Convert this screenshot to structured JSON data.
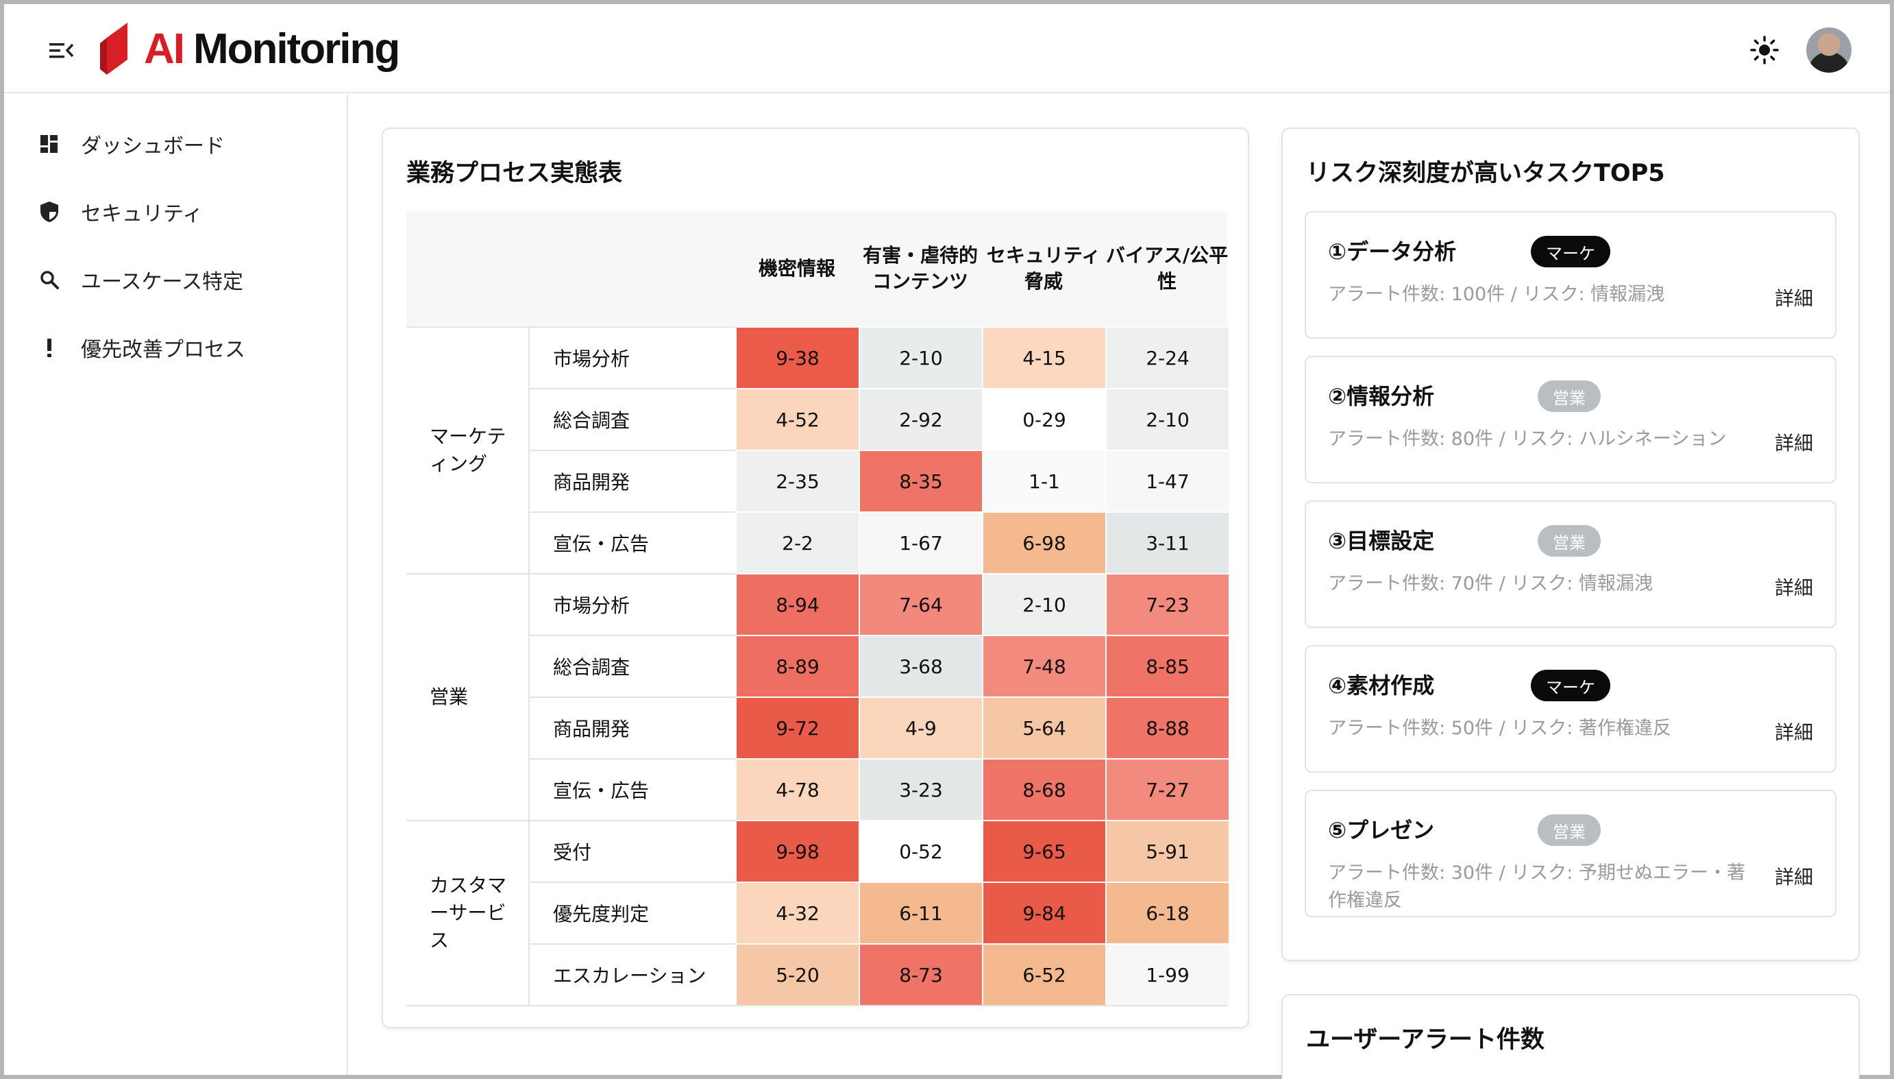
{
  "header": {
    "logo_ai": "AI",
    "logo_rest": "Monitoring"
  },
  "sidebar": {
    "items": [
      {
        "label": "ダッシュボード",
        "icon": "dashboard-icon"
      },
      {
        "label": "セキュリティ",
        "icon": "shield-icon"
      },
      {
        "label": "ユースケース特定",
        "icon": "search-icon"
      },
      {
        "label": "優先改善プロセス",
        "icon": "exclamation-icon"
      }
    ]
  },
  "matrix": {
    "title": "業務プロセス実態表",
    "columns": [
      "機密情報",
      "有害・虐待的コンテンツ",
      "セキュリティ脅威",
      "バイアス/公平性"
    ],
    "groups": [
      {
        "name": "マーケティング",
        "rows": [
          {
            "task": "市場分析",
            "cells": [
              "9-38",
              "2-10",
              "4-15",
              "2-24"
            ],
            "colors": [
              "#ec5b4a",
              "#e9ecec",
              "#fbd8bf",
              "#eef0f0"
            ]
          },
          {
            "task": "総合調査",
            "cells": [
              "4-52",
              "2-92",
              "0-29",
              "2-10"
            ],
            "colors": [
              "#fbd6bd",
              "#eceeee",
              "#ffffff",
              "#eef0f0"
            ]
          },
          {
            "task": "商品開発",
            "cells": [
              "2-35",
              "8-35",
              "1-1",
              "1-47"
            ],
            "colors": [
              "#eef0f0",
              "#ef7467",
              "#fafafa",
              "#f7f7f7"
            ]
          },
          {
            "task": "宣伝・広告",
            "cells": [
              "2-2",
              "1-67",
              "6-98",
              "3-11"
            ],
            "colors": [
              "#eef0f0",
              "#f7f7f7",
              "#f4b98f",
              "#e4e7e8"
            ]
          }
        ]
      },
      {
        "name": "営業",
        "rows": [
          {
            "task": "市場分析",
            "cells": [
              "8-94",
              "7-64",
              "2-10",
              "7-23"
            ],
            "colors": [
              "#ee6e62",
              "#f2897c",
              "#eef0f0",
              "#f28a7d"
            ]
          },
          {
            "task": "総合調査",
            "cells": [
              "8-89",
              "3-68",
              "7-48",
              "8-85"
            ],
            "colors": [
              "#ee6e62",
              "#e4e7e8",
              "#f28a7d",
              "#ef7366"
            ]
          },
          {
            "task": "商品開発",
            "cells": [
              "9-72",
              "4-9",
              "5-64",
              "8-88"
            ],
            "colors": [
              "#ea5a48",
              "#fbd6bd",
              "#f6c7a6",
              "#ef7366"
            ]
          },
          {
            "task": "宣伝・広告",
            "cells": [
              "4-78",
              "3-23",
              "8-68",
              "7-27"
            ],
            "colors": [
              "#fbd6bd",
              "#e4e7e8",
              "#ef7467",
              "#f28a7d"
            ]
          }
        ]
      },
      {
        "name": "カスタマーサービス",
        "rows": [
          {
            "task": "受付",
            "cells": [
              "9-98",
              "0-52",
              "9-65",
              "5-91"
            ],
            "colors": [
              "#ea5a48",
              "#ffffff",
              "#ea5a48",
              "#f6c7a6"
            ]
          },
          {
            "task": "優先度判定",
            "cells": [
              "4-32",
              "6-11",
              "9-84",
              "6-18"
            ],
            "colors": [
              "#fbd6bd",
              "#f4b98f",
              "#ea5a48",
              "#f4b98f"
            ]
          },
          {
            "task": "エスカレーション",
            "cells": [
              "5-20",
              "8-73",
              "6-52",
              "1-99"
            ],
            "colors": [
              "#f6c7a6",
              "#ef7467",
              "#f4b98f",
              "#f7f7f7"
            ]
          }
        ]
      }
    ]
  },
  "risk_top5": {
    "title": "リスク深刻度が高いタスクTOP5",
    "items": [
      {
        "name": "①データ分析",
        "badge": "マーケ",
        "badge_style": "dark",
        "desc": "アラート件数: 100件 / リスク: 情報漏洩",
        "detail": "詳細"
      },
      {
        "name": "②情報分析",
        "badge": "営業",
        "badge_style": "grey",
        "desc": "アラート件数: 80件 / リスク: ハルシネーション",
        "detail": "詳細"
      },
      {
        "name": "③目標設定",
        "badge": "営業",
        "badge_style": "grey",
        "desc": "アラート件数: 70件 / リスク: 情報漏洩",
        "detail": "詳細"
      },
      {
        "name": "④素材作成",
        "badge": "マーケ",
        "badge_style": "dark",
        "desc": "アラート件数: 50件 / リスク: 著作権違反",
        "detail": "詳細"
      },
      {
        "name": "⑤プレゼン",
        "badge": "営業",
        "badge_style": "grey",
        "desc": "アラート件数: 30件 / リスク: 予期せぬエラー・著作権違反",
        "detail": "詳細"
      }
    ]
  },
  "user_alerts": {
    "title": "ユーザーアラート件数"
  }
}
